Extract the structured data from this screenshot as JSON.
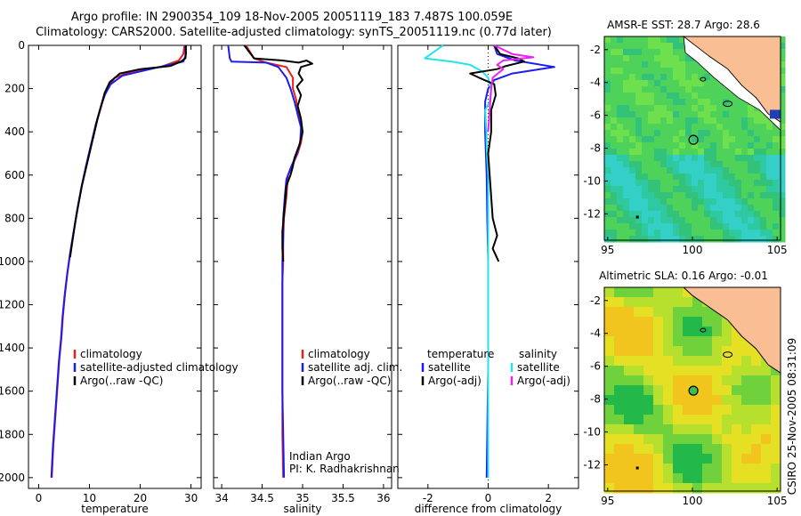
{
  "titles": {
    "line1": "Argo profile: IN 2900354_109 18-Nov-2005 20051119_183 7.487S 100.059E",
    "line2": "Climatology: CARS2000. Satellite-adjusted climatology: synTS_20051119.nc (0.77d later)"
  },
  "colors": {
    "climatology": "#e8211d",
    "satellite": "#1c1cf0",
    "argo": "#000000",
    "satellite_diff_sal": "#22e4ea",
    "argo_diff_sal": "#ee22ee",
    "land": "#f9be93"
  },
  "chart_data": [
    {
      "type": "line",
      "id": "temperature",
      "xlabel": "temperature",
      "ylabel": "",
      "xlim": [
        -2,
        32
      ],
      "ylim": [
        2050,
        0
      ],
      "xticks": [
        "0",
        "10",
        "20",
        "30"
      ],
      "yticks": [
        "0",
        "200",
        "400",
        "600",
        "800",
        "1000",
        "1200",
        "1400",
        "1600",
        "1800",
        "2000"
      ],
      "legend": [
        "climatology",
        "satellite-adjusted climatology",
        "Argo(..raw -QC)"
      ],
      "series": [
        {
          "name": "climatology",
          "color": "#e8211d",
          "points": [
            [
              28.7,
              0
            ],
            [
              28.5,
              40
            ],
            [
              27.6,
              70
            ],
            [
              24,
              100
            ],
            [
              18.5,
              120
            ],
            [
              15,
              150
            ],
            [
              13.5,
              200
            ],
            [
              12.6,
              260
            ],
            [
              11.5,
              350
            ],
            [
              10.5,
              450
            ],
            [
              9.5,
              550
            ],
            [
              8.5,
              650
            ],
            [
              7.7,
              750
            ],
            [
              7,
              850
            ],
            [
              6.3,
              950
            ],
            [
              5.7,
              1050
            ],
            [
              5.2,
              1150
            ],
            [
              4.8,
              1250
            ],
            [
              4.5,
              1350
            ],
            [
              4.1,
              1450
            ],
            [
              3.8,
              1550
            ],
            [
              3.5,
              1650
            ],
            [
              3.2,
              1750
            ],
            [
              2.9,
              1850
            ],
            [
              2.7,
              1950
            ],
            [
              2.6,
              2000
            ]
          ]
        },
        {
          "name": "satellite",
          "color": "#1c1cf0",
          "points": [
            [
              28.9,
              0
            ],
            [
              28.9,
              50
            ],
            [
              28.5,
              75
            ],
            [
              22,
              110
            ],
            [
              16.5,
              140
            ],
            [
              14.2,
              180
            ],
            [
              13,
              230
            ],
            [
              12.3,
              280
            ],
            [
              11.3,
              360
            ],
            [
              10.3,
              460
            ],
            [
              9.3,
              560
            ],
            [
              8.4,
              660
            ],
            [
              7.6,
              760
            ],
            [
              6.9,
              860
            ],
            [
              6.2,
              960
            ],
            [
              5.6,
              1060
            ],
            [
              5.1,
              1160
            ],
            [
              4.7,
              1260
            ],
            [
              4.4,
              1360
            ],
            [
              4,
              1460
            ],
            [
              3.7,
              1560
            ],
            [
              3.4,
              1660
            ],
            [
              3.1,
              1760
            ],
            [
              2.8,
              1860
            ],
            [
              2.6,
              1960
            ],
            [
              2.5,
              2000
            ]
          ]
        },
        {
          "name": "Argo(..raw -QC)",
          "color": "#000000",
          "points": [
            [
              29,
              0
            ],
            [
              29,
              40
            ],
            [
              28.9,
              60
            ],
            [
              28,
              75
            ],
            [
              26,
              95
            ],
            [
              20,
              110
            ],
            [
              16,
              130
            ],
            [
              14,
              170
            ],
            [
              13,
              220
            ],
            [
              12.4,
              270
            ],
            [
              11.6,
              340
            ],
            [
              10.6,
              440
            ],
            [
              9.6,
              540
            ],
            [
              8.6,
              640
            ],
            [
              7.8,
              740
            ],
            [
              7.2,
              820
            ],
            [
              6.7,
              900
            ],
            [
              6.2,
              980
            ]
          ]
        }
      ]
    },
    {
      "type": "line",
      "id": "salinity",
      "xlabel": "salinity",
      "ylabel": "",
      "xlim": [
        33.9,
        36.1
      ],
      "ylim": [
        2050,
        0
      ],
      "xticks": [
        "34",
        "34.5",
        "35",
        "35.5",
        "36"
      ],
      "legend": [
        "climatology",
        "satellite adj. clim.",
        "Argo(..raw -QC)"
      ],
      "annotation": [
        "Indian Argo",
        "PI: K. Radhakrishnan"
      ],
      "series": [
        {
          "name": "climatology",
          "color": "#e8211d",
          "points": [
            [
              34.3,
              0
            ],
            [
              34.4,
              60
            ],
            [
              34.55,
              80
            ],
            [
              34.8,
              100
            ],
            [
              34.88,
              150
            ],
            [
              34.88,
              200
            ],
            [
              34.92,
              250
            ],
            [
              34.94,
              300
            ],
            [
              34.98,
              350
            ],
            [
              35,
              400
            ],
            [
              34.98,
              450
            ],
            [
              34.94,
              500
            ],
            [
              34.88,
              550
            ],
            [
              34.82,
              600
            ],
            [
              34.8,
              700
            ],
            [
              34.77,
              800
            ],
            [
              34.76,
              900
            ],
            [
              34.76,
              1000
            ],
            [
              34.75,
              1100
            ],
            [
              34.75,
              1200
            ],
            [
              34.75,
              1400
            ],
            [
              34.75,
              1600
            ],
            [
              34.75,
              1800
            ],
            [
              34.76,
              2000
            ]
          ]
        },
        {
          "name": "satellite",
          "color": "#1c1cf0",
          "points": [
            [
              34.08,
              0
            ],
            [
              34.1,
              60
            ],
            [
              34.12,
              75
            ],
            [
              34.55,
              80
            ],
            [
              34.7,
              100
            ],
            [
              34.8,
              150
            ],
            [
              34.85,
              200
            ],
            [
              34.9,
              260
            ],
            [
              34.94,
              320
            ],
            [
              34.98,
              380
            ],
            [
              34.97,
              450
            ],
            [
              34.93,
              500
            ],
            [
              34.86,
              560
            ],
            [
              34.8,
              620
            ],
            [
              34.78,
              700
            ],
            [
              34.76,
              800
            ],
            [
              34.76,
              900
            ],
            [
              34.75,
              1000
            ],
            [
              34.75,
              1200
            ],
            [
              34.75,
              1400
            ],
            [
              34.75,
              1600
            ],
            [
              34.76,
              1800
            ],
            [
              34.77,
              2000
            ]
          ]
        },
        {
          "name": "Argo(..raw -QC)",
          "color": "#000000",
          "points": [
            [
              34.28,
              0
            ],
            [
              34.4,
              60
            ],
            [
              34.75,
              70
            ],
            [
              34.95,
              80
            ],
            [
              35.05,
              70
            ],
            [
              35.12,
              85
            ],
            [
              34.98,
              100
            ],
            [
              34.95,
              130
            ],
            [
              35,
              160
            ],
            [
              34.93,
              190
            ],
            [
              34.98,
              230
            ],
            [
              34.94,
              280
            ],
            [
              34.98,
              340
            ],
            [
              35,
              400
            ],
            [
              34.96,
              460
            ],
            [
              34.9,
              520
            ],
            [
              34.88,
              560
            ],
            [
              34.85,
              600
            ],
            [
              34.8,
              650
            ],
            [
              34.79,
              700
            ],
            [
              34.77,
              780
            ],
            [
              34.75,
              860
            ],
            [
              34.75,
              940
            ],
            [
              34.76,
              1000
            ]
          ]
        }
      ]
    },
    {
      "type": "line",
      "id": "difference",
      "xlabel": "difference from climatology",
      "ylabel": "",
      "xlim": [
        -3,
        3
      ],
      "ylim": [
        2050,
        0
      ],
      "xticks": [
        "-2",
        "0",
        "2"
      ],
      "legend_left": [
        "temperature",
        "satellite",
        "Argo(-adj)"
      ],
      "legend_right": [
        "salinity",
        "satellite",
        "Argo(-adj)"
      ],
      "series": [
        {
          "name": "temperature satellite",
          "color": "#1c1cf0",
          "points": [
            [
              0.2,
              0
            ],
            [
              0.3,
              40
            ],
            [
              0.9,
              70
            ],
            [
              2.2,
              100
            ],
            [
              0.8,
              130
            ],
            [
              0.2,
              160
            ],
            [
              0,
              200
            ],
            [
              -0.1,
              260
            ],
            [
              -0.1,
              400
            ],
            [
              -0.05,
              600
            ],
            [
              -0.03,
              800
            ],
            [
              0,
              1000
            ],
            [
              0,
              1500
            ],
            [
              -0.05,
              2000
            ]
          ]
        },
        {
          "name": "salinity satellite",
          "color": "#22e4ea",
          "points": [
            [
              -1.5,
              0
            ],
            [
              -2.1,
              60
            ],
            [
              -1.2,
              75
            ],
            [
              -0.6,
              90
            ],
            [
              -0.2,
              120
            ],
            [
              0,
              150
            ],
            [
              0.1,
              200
            ],
            [
              0.05,
              260
            ],
            [
              -0.1,
              300
            ],
            [
              -0.06,
              400
            ],
            [
              -0.04,
              500
            ],
            [
              0,
              600
            ],
            [
              0,
              800
            ],
            [
              0,
              1000
            ],
            [
              0,
              1500
            ],
            [
              0,
              2000
            ]
          ]
        },
        {
          "name": "temperature Argo",
          "color": "#000000",
          "points": [
            [
              0.2,
              0
            ],
            [
              0.4,
              40
            ],
            [
              1,
              60
            ],
            [
              1.2,
              75
            ],
            [
              0.6,
              95
            ],
            [
              0.3,
              110
            ],
            [
              -0.6,
              130
            ],
            [
              -0.3,
              150
            ],
            [
              0.2,
              180
            ],
            [
              0.25,
              230
            ],
            [
              0.1,
              300
            ],
            [
              0.1,
              400
            ],
            [
              0,
              500
            ],
            [
              0.05,
              600
            ],
            [
              0.1,
              700
            ],
            [
              0.15,
              800
            ],
            [
              0.3,
              880
            ],
            [
              0.15,
              940
            ],
            [
              0.35,
              1000
            ]
          ]
        },
        {
          "name": "salinity Argo",
          "color": "#ee22ee",
          "points": [
            [
              0.2,
              0
            ],
            [
              0.8,
              40
            ],
            [
              1.5,
              55
            ],
            [
              0.5,
              70
            ],
            [
              0.3,
              90
            ],
            [
              0.5,
              110
            ],
            [
              0.15,
              150
            ],
            [
              0.1,
              200
            ],
            [
              0,
              400
            ]
          ]
        }
      ]
    }
  ],
  "maps": [
    {
      "title": "AMSR-E SST: 28.7 Argo: 28.6",
      "xticks": [
        "95",
        "100",
        "105"
      ],
      "yticks": [
        "-2",
        "-4",
        "-6",
        "-8",
        "-10",
        "-12"
      ]
    },
    {
      "title": "Altimetric SLA: 0.16 Argo: -0.01",
      "xticks": [
        "95",
        "100",
        "105"
      ],
      "yticks": [
        "-2",
        "-4",
        "-6",
        "-8",
        "-10",
        "-12"
      ]
    }
  ],
  "footer": "CSIRO 25-Nov-2005 08:31:09"
}
